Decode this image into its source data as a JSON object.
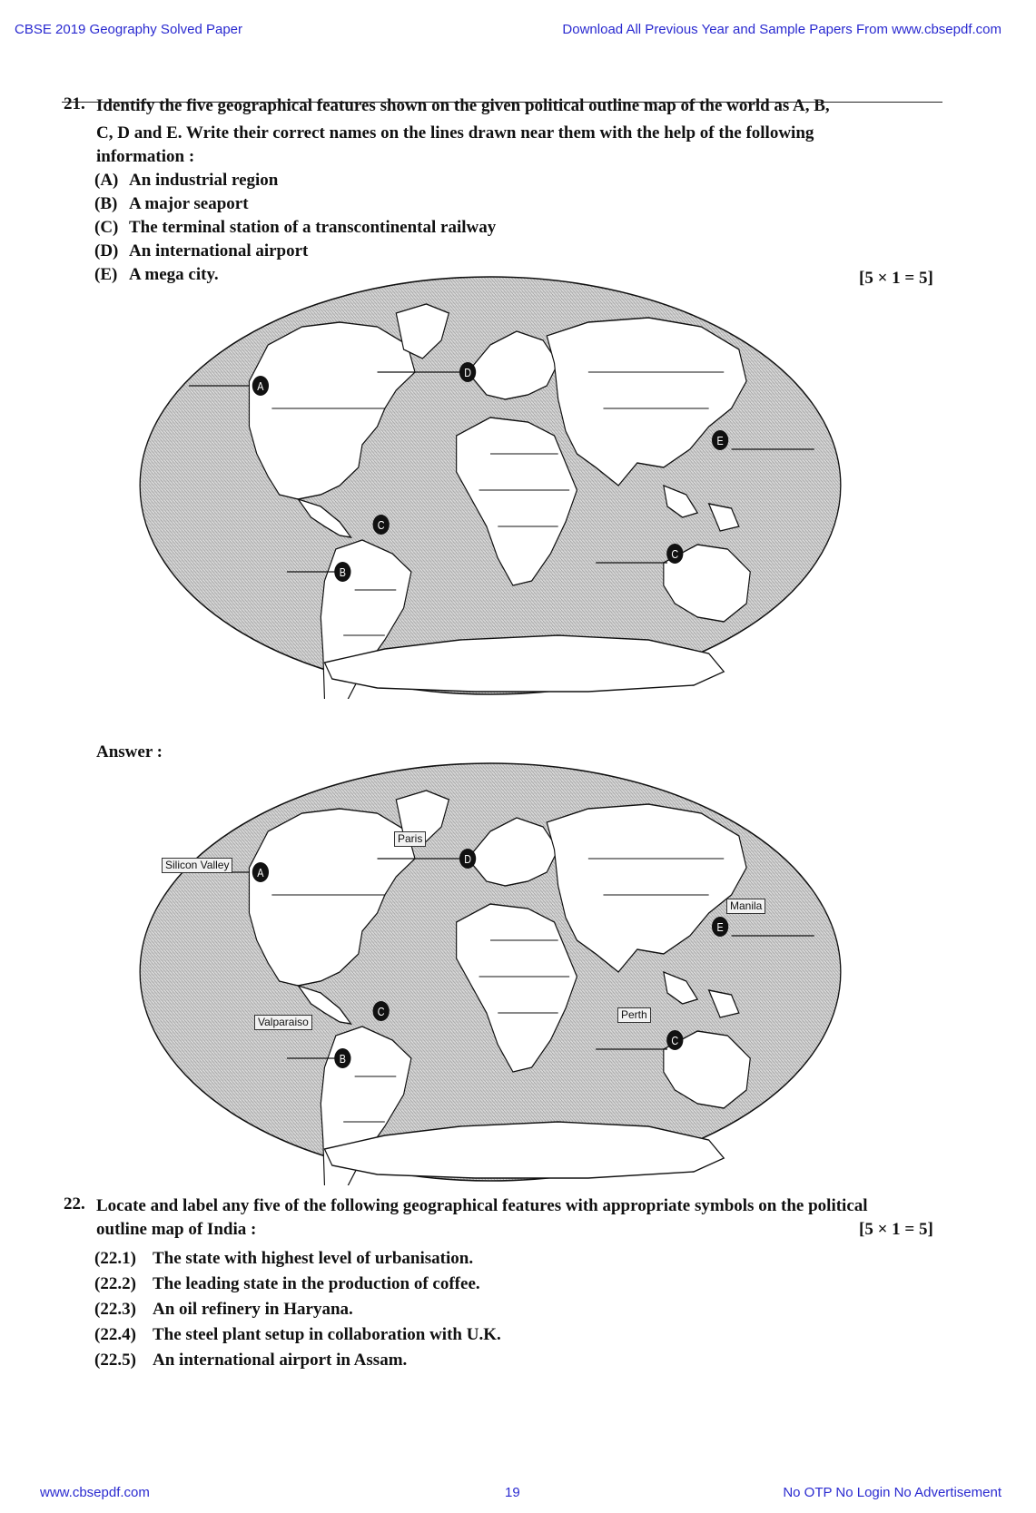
{
  "header": {
    "left": "CBSE 2019 Geography Solved Paper",
    "right": "Download All Previous Year and Sample Papers From www.cbsepdf.com"
  },
  "footer": {
    "left": "www.cbsepdf.com",
    "center": "19",
    "right": "No OTP No Login No Advertisement"
  },
  "q21": {
    "number": "21.",
    "line1": "Identify the five geographical features shown on the given political outline map of the world as A, B,",
    "line2": "C, D and E. Write their correct names on the lines drawn near them with the help of the following",
    "line3": "information :",
    "options": [
      {
        "label": "(A)",
        "text": "An industrial region"
      },
      {
        "label": "(B)",
        "text": "A major seaport"
      },
      {
        "label": "(C)",
        "text": "The terminal station of a transcontinental railway"
      },
      {
        "label": "(D)",
        "text": "An international airport"
      },
      {
        "label": "(E)",
        "text": "A mega city."
      }
    ],
    "marks": "[5 × 1 = 5]"
  },
  "answer_label": "Answer :",
  "answer_places": {
    "A": "Silicon Valley",
    "B": "Valparaiso",
    "C": "Perth",
    "D": "Paris",
    "E": "Manila"
  },
  "markers": {
    "A": "A",
    "B": "B",
    "C": "C",
    "D": "D",
    "E": "E"
  },
  "q22": {
    "number": "22.",
    "line1": "Locate and label any five of the following geographical features with appropriate symbols on the political",
    "line2": "outline map of India :",
    "marks": "[5 × 1 = 5]",
    "items": [
      {
        "label": "(22.1)",
        "text": "The state with highest level of urbanisation."
      },
      {
        "label": "(22.2)",
        "text": "The leading state in the production of coffee."
      },
      {
        "label": "(22.3)",
        "text": "An oil refinery in Haryana."
      },
      {
        "label": "(22.4)",
        "text": "The steel plant setup in collaboration with U.K."
      },
      {
        "label": "(22.5)",
        "text": "An international airport in Assam."
      }
    ]
  }
}
